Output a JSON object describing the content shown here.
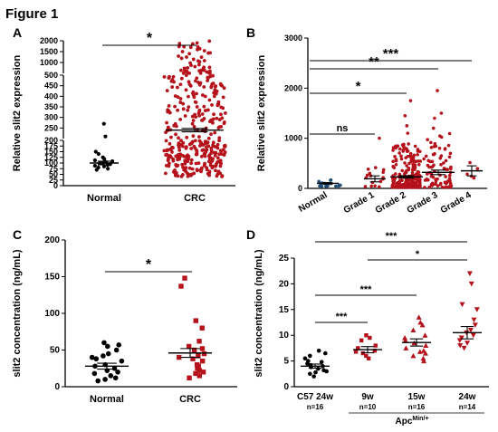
{
  "figure_title": "Figure 1",
  "colors": {
    "normal": "#000000",
    "crc": "#b5121b",
    "grade_normal": "#1f4e79",
    "axis": "#000000"
  },
  "chart_data": [
    {
      "panel": "A",
      "type": "scatter",
      "ylabel": "Relative slit2 expression",
      "categories": [
        "Normal",
        "CRC"
      ],
      "broken_axis": true,
      "yticks": [
        "0",
        "25",
        "50",
        "75",
        "100",
        "125",
        "150",
        "175",
        "200",
        "250",
        "300",
        "350",
        "400",
        "450",
        "500",
        "1000",
        "1500",
        "2000"
      ],
      "groups": [
        {
          "name": "Normal",
          "mean": 100,
          "sem": 8,
          "n": 18
        },
        {
          "name": "CRC",
          "mean": 240,
          "sem": 8,
          "n": 400
        }
      ],
      "significance": [
        {
          "from": "Normal",
          "to": "CRC",
          "label": "*"
        }
      ]
    },
    {
      "panel": "B",
      "type": "scatter",
      "ylabel": "Relative slit2 expression",
      "categories": [
        "Normal",
        "Grade 1",
        "Grade 2",
        "Grade 3",
        "Grade 4"
      ],
      "ylim": [
        0,
        3000
      ],
      "yticks": [
        "0",
        "1000",
        "2000",
        "3000"
      ],
      "groups": [
        {
          "name": "Normal",
          "mean": 100,
          "sem": 15
        },
        {
          "name": "Grade 1",
          "mean": 190,
          "sem": 60
        },
        {
          "name": "Grade 2",
          "mean": 230,
          "sem": 25
        },
        {
          "name": "Grade 3",
          "mean": 320,
          "sem": 45
        },
        {
          "name": "Grade 4",
          "mean": 350,
          "sem": 100
        }
      ],
      "significance": [
        {
          "from": "Normal",
          "to": "Grade 1",
          "label": "ns"
        },
        {
          "from": "Normal",
          "to": "Grade 2",
          "label": "*"
        },
        {
          "from": "Normal",
          "to": "Grade 3",
          "label": "**"
        },
        {
          "from": "Normal",
          "to": "Grade 4",
          "label": "***"
        }
      ]
    },
    {
      "panel": "C",
      "type": "scatter",
      "ylabel": "slit2 concentration (ng/mL)",
      "categories": [
        "Normal",
        "CRC"
      ],
      "ylim": [
        0,
        200
      ],
      "yticks": [
        "0",
        "50",
        "100",
        "150",
        "200"
      ],
      "groups": [
        {
          "name": "Normal",
          "mean": 28,
          "sem": 4,
          "points": [
            60,
            57,
            55,
            50,
            45,
            42,
            40,
            38,
            35,
            30,
            28,
            25,
            22,
            20,
            18,
            15,
            12,
            10,
            8
          ]
        },
        {
          "name": "CRC",
          "mean": 46,
          "sem": 6,
          "points": [
            148,
            137,
            90,
            80,
            62,
            55,
            52,
            50,
            45,
            42,
            40,
            38,
            35,
            30,
            28,
            25,
            22,
            20,
            18,
            15,
            12
          ]
        }
      ],
      "significance": [
        {
          "from": "Normal",
          "to": "CRC",
          "label": "*"
        }
      ]
    },
    {
      "panel": "D",
      "type": "scatter",
      "ylabel": "slit2 concentration (ng/mL)",
      "categories": [
        "C57 24w",
        "9w",
        "15w",
        "24w"
      ],
      "n_labels": [
        "n=16",
        "n=10",
        "n=16",
        "n=14"
      ],
      "group_label": "Apc",
      "group_label_sup": "Min/+",
      "ylim": [
        0,
        25
      ],
      "yticks": [
        "0",
        "5",
        "10",
        "15",
        "20",
        "25"
      ],
      "groups": [
        {
          "name": "C57 24w",
          "mean": 4.0,
          "sem": 0.4,
          "points": [
            7.0,
            6.5,
            6.0,
            5.5,
            5.0,
            4.8,
            4.5,
            4.2,
            4.0,
            3.8,
            3.5,
            3.2,
            3.0,
            2.8,
            2.5,
            2.0
          ]
        },
        {
          "name": "9w",
          "mean": 7.2,
          "sem": 0.6,
          "points": [
            10,
            9.5,
            9.0,
            8.0,
            7.5,
            7.0,
            6.8,
            6.5,
            6.0,
            5.5
          ]
        },
        {
          "name": "15w",
          "mean": 8.6,
          "sem": 0.7,
          "points": [
            13.5,
            12.5,
            12,
            11,
            10,
            9.5,
            9.0,
            8.5,
            8.0,
            7.5,
            7.0,
            6.8,
            6.5,
            6.0,
            5.5,
            5.0
          ]
        },
        {
          "name": "24w",
          "mean": 10.5,
          "sem": 1.2,
          "points": [
            22,
            20,
            16,
            15,
            13,
            12,
            11,
            10.5,
            10,
            9.5,
            9,
            8.5,
            8,
            7.5
          ]
        }
      ],
      "significance": [
        {
          "from": "C57 24w",
          "to": "9w",
          "label": "***"
        },
        {
          "from": "C57 24w",
          "to": "15w",
          "label": "***"
        },
        {
          "from": "9w",
          "to": "24w",
          "label": "*"
        },
        {
          "from": "C57 24w",
          "to": "24w",
          "label": "***"
        }
      ]
    }
  ]
}
